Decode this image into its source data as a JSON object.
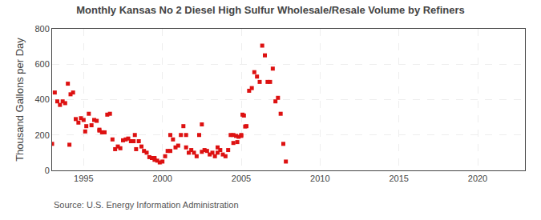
{
  "chart_data": {
    "type": "scatter",
    "title": "Monthly Kansas No 2 Diesel High Sulfur Wholesale/Resale Volume by Refiners",
    "ylabel": "Thousand Gallons per Day",
    "annotations": [
      "Source: U.S. Energy Information Administration"
    ],
    "color": "#dd1111",
    "marker": "square",
    "grid": true,
    "xlim": [
      1993,
      2023
    ],
    "ylim": [
      0,
      800
    ],
    "xticks": [
      1995,
      2000,
      2005,
      2010,
      2015,
      2020
    ],
    "yticks": [
      0,
      200,
      400,
      600,
      800
    ],
    "x": [
      1993.0,
      1993.17,
      1993.33,
      1993.5,
      1993.67,
      1993.83,
      1994.0,
      1994.17,
      1994.33,
      1994.5,
      1994.67,
      1994.83,
      1995.0,
      1995.17,
      1995.33,
      1995.5,
      1995.67,
      1995.83,
      1996.0,
      1996.17,
      1996.33,
      1996.5,
      1996.67,
      1996.83,
      1997.0,
      1997.17,
      1997.33,
      1997.5,
      1997.67,
      1997.83,
      1998.0,
      1998.17,
      1998.33,
      1998.5,
      1998.67,
      1998.83,
      1999.0,
      1999.17,
      1999.33,
      1999.5,
      1999.67,
      1999.83,
      2000.0,
      2000.17,
      2000.33,
      2000.5,
      2000.67,
      2000.83,
      2001.0,
      2001.17,
      2001.33,
      2001.5,
      2001.67,
      2001.83,
      2002.0,
      2002.17,
      2002.33,
      2002.5,
      2002.67,
      2002.83,
      2003.0,
      2003.17,
      2003.33,
      2003.5,
      2003.67,
      2003.83,
      2004.0,
      2004.17,
      2004.33,
      2004.5,
      2004.67,
      2004.83,
      2005.0,
      2005.17,
      2005.33,
      2005.5,
      2005.67,
      2005.83,
      2006.0,
      2006.17,
      2006.33,
      2006.5,
      2006.67,
      2006.83,
      2007.0,
      2007.17,
      2007.33,
      2007.5,
      2007.67,
      2007.83,
      1994.1,
      1995.1,
      1996.0,
      1998.25,
      1999.5,
      2000.5,
      2001.5,
      2002.5,
      2003.5,
      2004.5,
      2004.75,
      2005.0,
      2005.08,
      2005.25
    ],
    "values": [
      150,
      440,
      390,
      370,
      390,
      380,
      490,
      430,
      440,
      290,
      270,
      295,
      285,
      250,
      320,
      255,
      285,
      280,
      230,
      215,
      215,
      315,
      320,
      175,
      120,
      135,
      125,
      170,
      175,
      180,
      165,
      165,
      120,
      165,
      135,
      110,
      100,
      75,
      70,
      70,
      55,
      45,
      50,
      80,
      110,
      110,
      175,
      130,
      140,
      200,
      250,
      130,
      100,
      115,
      100,
      80,
      200,
      105,
      115,
      110,
      90,
      100,
      80,
      100,
      115,
      90,
      80,
      115,
      200,
      200,
      195,
      190,
      195,
      310,
      250,
      450,
      465,
      555,
      530,
      500,
      705,
      650,
      500,
      500,
      575,
      390,
      410,
      320,
      150,
      50,
      145,
      220,
      225,
      200,
      60,
      200,
      200,
      260,
      130,
      155,
      160,
      200,
      315,
      248
    ]
  }
}
